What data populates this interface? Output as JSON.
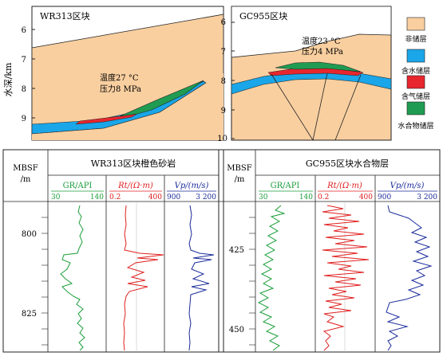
{
  "top": {
    "left_panel": {
      "title": "WR313区块",
      "temp_label": "温度27 °C",
      "pressure_label": "压力8 MPa",
      "depth_ticks": [
        "6",
        "7",
        "8",
        "9"
      ]
    },
    "right_panel": {
      "title": "GC955区块",
      "temp_label": "温度23 °C",
      "pressure_label": "压力4 MPa",
      "depth_ticks": [
        "6",
        "7",
        "8",
        "9",
        "10"
      ]
    },
    "y_axis_label": "水深/km",
    "legend": [
      {
        "label": "非储层",
        "color": "#f9cfa0"
      },
      {
        "label": "含水储层",
        "color": "#1aa6e8"
      },
      {
        "label": "含气储层",
        "color": "#e8262e"
      },
      {
        "label": "水合物储层",
        "color": "#1f9c52"
      }
    ]
  },
  "bottom": {
    "left": {
      "depth_header_1": "MBSF",
      "depth_header_2": "/m",
      "title": "WR313区块橙色砂岩",
      "depth_ticks": [
        "800",
        "825"
      ],
      "tracks": [
        {
          "name": "GR/API",
          "min": "30",
          "max": "140",
          "color": "#1a9e3a"
        },
        {
          "name": "Rt/(Ω·m)",
          "min": "0.2",
          "max": "400",
          "color": "#e02020"
        },
        {
          "name": "Vp/(m/s)",
          "min": "900",
          "max": "3 200",
          "color": "#1a2a9a"
        }
      ]
    },
    "right": {
      "depth_header_1": "MBSF",
      "depth_header_2": "/m",
      "title": "GC955区块水合物层",
      "depth_ticks": [
        "425",
        "450"
      ],
      "tracks": [
        {
          "name": "GR/API",
          "min": "30",
          "max": "140",
          "color": "#1a9e3a"
        },
        {
          "name": "Rt/(Ω·m)",
          "min": "0.2",
          "max": "400",
          "color": "#e02020"
        },
        {
          "name": "Vp/(m/s)",
          "min": "900",
          "max": "3 200",
          "color": "#1a2a9a"
        }
      ]
    }
  }
}
